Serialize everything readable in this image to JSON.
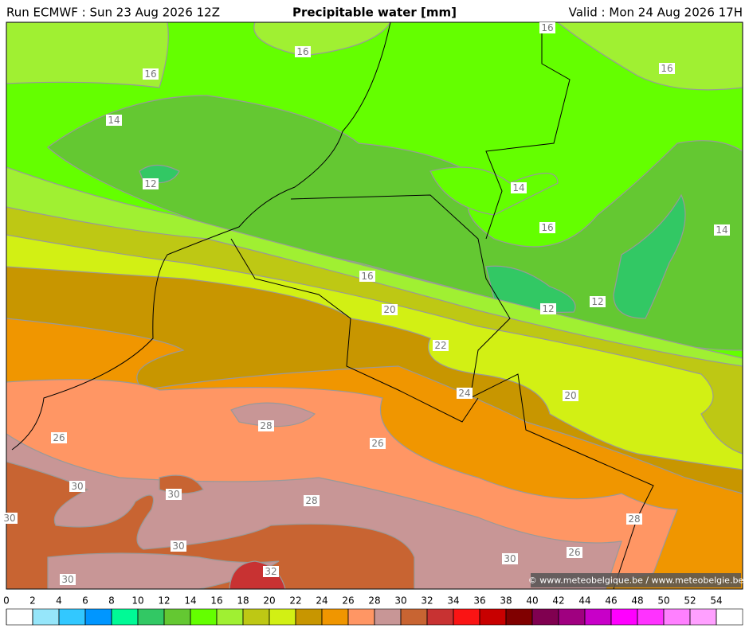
{
  "header": {
    "left": "Run ECMWF : Sun 23 Aug 2026 12Z",
    "title": "Precipitable water [mm]",
    "right": "Valid : Mon 24 Aug 2026 17H"
  },
  "map": {
    "contour_labels": [
      "16",
      "16",
      "16",
      "16",
      "14",
      "12",
      "14",
      "16",
      "14",
      "16",
      "12",
      "12",
      "20",
      "22",
      "24",
      "20",
      "26",
      "28",
      "26",
      "30",
      "30",
      "28",
      "30",
      "28",
      "30",
      "26",
      "30",
      "32",
      "30"
    ],
    "copyright": "© www.meteobelgique.be / www.meteobelgie.be"
  },
  "colorbar": {
    "ticks": [
      0,
      2,
      4,
      6,
      8,
      10,
      12,
      14,
      16,
      18,
      20,
      22,
      24,
      26,
      28,
      30,
      32,
      34,
      36,
      38,
      40,
      42,
      44,
      46,
      48,
      50,
      52,
      54
    ],
    "colors": [
      "#ffffff",
      "#96e6fa",
      "#32c8ff",
      "#0096ff",
      "#00fa96",
      "#32c864",
      "#64c832",
      "#64ff00",
      "#a0f032",
      "#bec814",
      "#d2f014",
      "#c89600",
      "#f09600",
      "#ff9664",
      "#c89696",
      "#c86432",
      "#c83232",
      "#fa1414",
      "#c80000",
      "#800000",
      "#800050",
      "#a00080",
      "#c800c8",
      "#ff00ff",
      "#ff32ff",
      "#ff80ff",
      "#ffa0ff",
      "#ffffff"
    ]
  }
}
